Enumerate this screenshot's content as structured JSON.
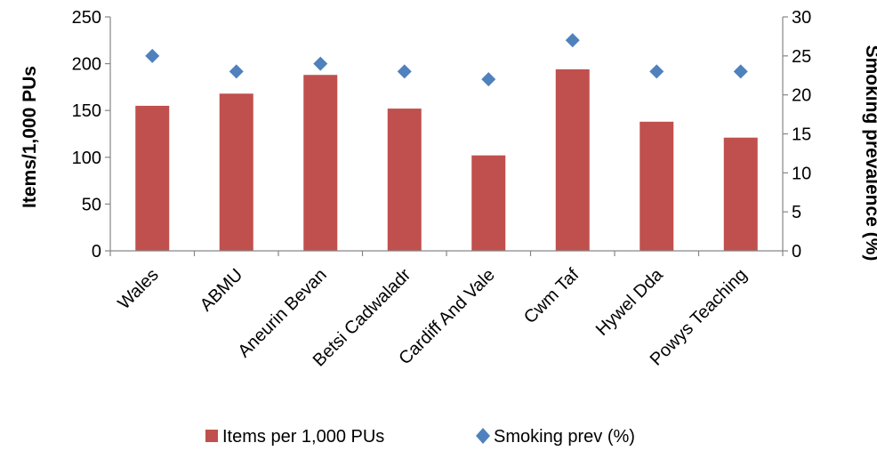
{
  "chart_data": {
    "type": "bar",
    "categories": [
      "Wales",
      "ABMU",
      "Aneurin Bevan",
      "Betsi Cadwaladr",
      "Cardiff And Vale",
      "Cwm Taf",
      "Hywel Dda",
      "Powys Teaching"
    ],
    "series": [
      {
        "name": "Items per 1,000 PUs",
        "type": "bar",
        "axis": "left",
        "values": [
          155,
          168,
          188,
          152,
          102,
          194,
          138,
          121
        ],
        "color": "#c0504d"
      },
      {
        "name": "Smoking prev (%)",
        "type": "scatter",
        "axis": "right",
        "values": [
          25,
          23,
          24,
          23,
          22,
          27,
          23,
          23
        ],
        "color": "#4f81bd"
      }
    ],
    "ylabel": "Items/1,000 PUs",
    "ylabel_right": "Smoking prevalence (%)",
    "ylim": [
      0,
      250
    ],
    "ylim_right": [
      0,
      30
    ],
    "yticks": [
      "0",
      "50",
      "100",
      "150",
      "200",
      "250"
    ],
    "yticks_right": [
      "0",
      "5",
      "10",
      "15",
      "20",
      "25",
      "30"
    ],
    "legend_position": "bottom",
    "grid": false
  }
}
